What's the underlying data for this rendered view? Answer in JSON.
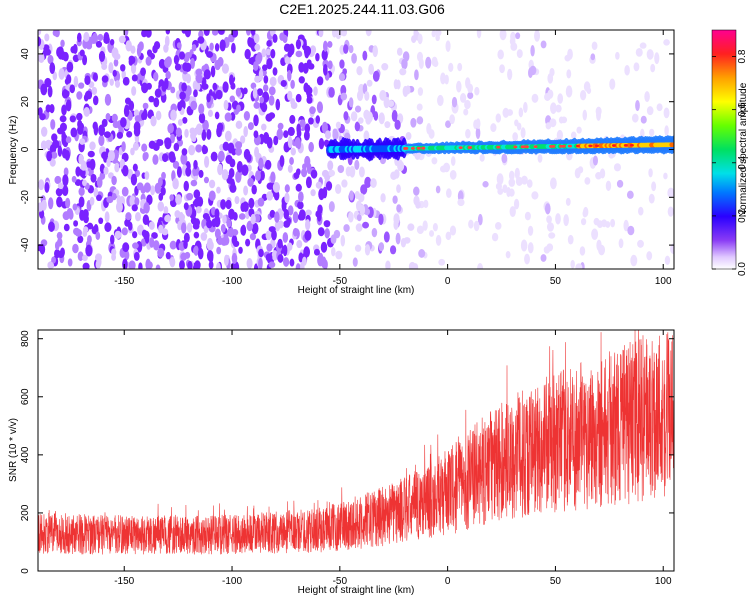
{
  "chart_data": [
    {
      "type": "heatmap",
      "title": "C2E1.2025.244.11.03.G06",
      "xlabel": "Height of straight line (km)",
      "ylabel": "Frequency (Hz)",
      "xlim": [
        -190,
        105
      ],
      "ylim": [
        -50,
        50
      ],
      "xticks": [
        -150,
        -100,
        -50,
        0,
        50,
        100
      ],
      "yticks": [
        40,
        20,
        0,
        -20,
        -40
      ],
      "colorbar": {
        "label": "Normalized spectral amplitude",
        "range": [
          0.0,
          0.9
        ],
        "ticks": [
          0.0,
          0.2,
          0.4,
          0.6,
          0.8
        ],
        "tick_labels": [
          "0.0",
          "0.2",
          "0.4",
          "0.6",
          "0.8"
        ]
      },
      "ridge": {
        "description_values": "dominant signal near 0 Hz",
        "x_start": -55,
        "x_end": 105,
        "frequency_start": 0,
        "frequency_end": 2
      }
    },
    {
      "type": "line",
      "xlabel": "Height of straight line (km)",
      "ylabel": "SNR (10 * v/v)",
      "xlim": [
        -190,
        105
      ],
      "ylim": [
        0,
        830
      ],
      "xticks": [
        -150,
        -100,
        -50,
        0,
        50,
        100
      ],
      "yticks": [
        0,
        200,
        400,
        600,
        800
      ],
      "trend": {
        "x": [
          -190,
          -150,
          -100,
          -60,
          -40,
          -20,
          0,
          20,
          40,
          60,
          80,
          105
        ],
        "y": [
          130,
          125,
          125,
          140,
          170,
          210,
          270,
          360,
          420,
          460,
          500,
          560
        ]
      },
      "color": "#ee3333"
    }
  ]
}
